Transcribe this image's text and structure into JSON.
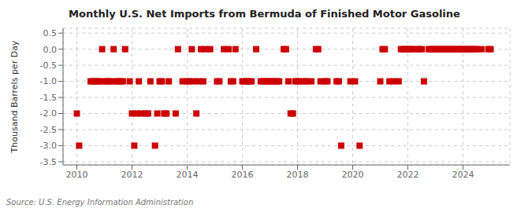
{
  "chart_data": {
    "type": "scatter",
    "title": "Monthly U.S. Net Imports from Bermuda of Finished Motor Gasoline",
    "ylabel": "Thousand Barrels per Day",
    "annotations": [
      "Source: U.S. Energy Information Administration"
    ],
    "color": "#cc0000",
    "marker": "square",
    "grid": true,
    "xlim": [
      2009.5,
      2025.7
    ],
    "ylim": [
      -3.6,
      0.65
    ],
    "xticks": [
      2010,
      2012,
      2014,
      2016,
      2018,
      2020,
      2022,
      2024
    ],
    "yticks": [
      0.5,
      {
        "value": 0.0,
        "label": "0.0"
      },
      -0.5,
      {
        "value": -1.0,
        "label": "-1.0"
      },
      -1.5,
      {
        "value": -2.0,
        "label": "-2.0"
      },
      -2.5,
      {
        "value": -3.0,
        "label": "-3.0"
      },
      -3.5
    ],
    "x": [
      2010.0,
      2010.083,
      2010.5,
      2010.583,
      2010.667,
      2010.75,
      2010.833,
      2010.917,
      2011.0,
      2011.083,
      2011.167,
      2011.25,
      2011.333,
      2011.417,
      2011.5,
      2011.583,
      2011.667,
      2011.75,
      2011.917,
      2012.0,
      2012.083,
      2012.167,
      2012.25,
      2012.333,
      2012.5,
      2012.583,
      2012.667,
      2012.833,
      2012.917,
      2013.0,
      2013.083,
      2013.167,
      2013.25,
      2013.333,
      2013.583,
      2013.667,
      2013.833,
      2014.0,
      2014.083,
      2014.167,
      2014.25,
      2014.333,
      2014.417,
      2014.5,
      2014.583,
      2014.667,
      2014.833,
      2015.083,
      2015.167,
      2015.333,
      2015.5,
      2015.583,
      2015.667,
      2015.75,
      2016.0,
      2016.083,
      2016.167,
      2016.25,
      2016.333,
      2016.5,
      2016.667,
      2016.75,
      2016.833,
      2016.917,
      2017.0,
      2017.083,
      2017.167,
      2017.25,
      2017.333,
      2017.5,
      2017.583,
      2017.667,
      2017.75,
      2017.833,
      2017.917,
      2018.0,
      2018.083,
      2018.25,
      2018.333,
      2018.5,
      2018.667,
      2018.75,
      2018.833,
      2019.0,
      2019.083,
      2019.417,
      2019.5,
      2019.583,
      2019.917,
      2020.083,
      2020.25,
      2021.0,
      2021.083,
      2021.167,
      2021.333,
      2021.5,
      2021.667,
      2021.75,
      2021.833,
      2021.917,
      2022.0,
      2022.083,
      2022.167,
      2022.333,
      2022.417,
      2022.5,
      2022.583,
      2022.75,
      2022.833,
      2022.917,
      2023.0,
      2023.083,
      2023.167,
      2023.25,
      2023.333,
      2023.417,
      2023.5,
      2023.583,
      2023.667,
      2023.75,
      2023.833,
      2023.917,
      2024.0,
      2024.083,
      2024.167,
      2024.25,
      2024.333,
      2024.417,
      2024.5,
      2024.667,
      2024.917,
      2025.0
    ],
    "values": [
      -2.0,
      -3.0,
      -1.0,
      -1.0,
      -1.0,
      -1.0,
      -1.0,
      0.0,
      -1.0,
      -1.0,
      -1.0,
      -1.0,
      0.0,
      -1.0,
      -1.0,
      -1.0,
      -1.0,
      0.0,
      -1.0,
      -2.0,
      -3.0,
      -2.0,
      -1.0,
      -2.0,
      -2.0,
      -2.0,
      -1.0,
      -3.0,
      -2.0,
      -1.0,
      -1.0,
      -2.0,
      -2.0,
      -1.0,
      -2.0,
      0.0,
      -1.0,
      -1.0,
      -1.0,
      0.0,
      -1.0,
      -2.0,
      -1.0,
      0.0,
      -1.0,
      0.0,
      0.0,
      -1.0,
      -1.0,
      0.0,
      0.0,
      -1.0,
      -1.0,
      0.0,
      -1.0,
      -1.0,
      -1.0,
      -1.0,
      -1.0,
      0.0,
      -1.0,
      -1.0,
      -1.0,
      -1.0,
      -1.0,
      -1.0,
      -1.0,
      -1.0,
      -1.0,
      0.0,
      0.0,
      -1.0,
      -2.0,
      -2.0,
      -1.0,
      -1.0,
      -1.0,
      -1.0,
      -1.0,
      -1.0,
      0.0,
      0.0,
      -1.0,
      -1.0,
      -1.0,
      -1.0,
      -1.0,
      -3.0,
      -1.0,
      -1.0,
      -3.0,
      -1.0,
      0.0,
      0.0,
      -1.0,
      -1.0,
      -1.0,
      0.0,
      0.0,
      0.0,
      0.0,
      0.0,
      0.0,
      0.0,
      0.0,
      0.0,
      -1.0,
      0.0,
      0.0,
      0.0,
      0.0,
      0.0,
      0.0,
      0.0,
      0.0,
      0.0,
      0.0,
      0.0,
      0.0,
      0.0,
      0.0,
      0.0,
      0.0,
      0.0,
      0.0,
      0.0,
      0.0,
      0.0,
      0.0,
      0.0,
      0.0,
      0.0
    ]
  }
}
